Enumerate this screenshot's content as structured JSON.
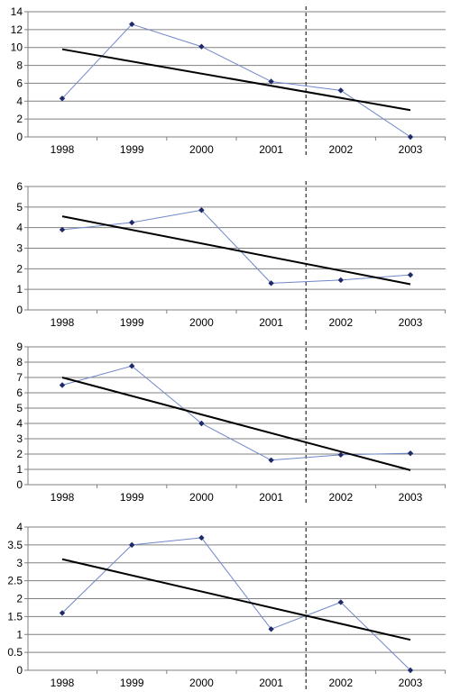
{
  "colors": {
    "grid": "#808080",
    "axis": "#808080",
    "series_line": "#6f86c9",
    "marker": "#1f2a6a",
    "trend": "#000000",
    "divider": "#000000"
  },
  "chart_data": [
    {
      "type": "line",
      "categories": [
        "1998",
        "1999",
        "2000",
        "2001",
        "2002",
        "2003"
      ],
      "ylim": [
        0,
        14
      ],
      "yticks": [
        0,
        2,
        4,
        6,
        8,
        10,
        12,
        14
      ],
      "ytick_labels": [
        "0",
        "2",
        "4",
        "6",
        "8",
        "10",
        "12",
        "14"
      ],
      "series": [
        {
          "values": [
            4.3,
            12.6,
            10.1,
            6.2,
            5.2,
            0
          ]
        }
      ],
      "trendline": {
        "start": 9.8,
        "end": 3.0
      },
      "divider_between": [
        "2001",
        "2002"
      ],
      "grid": true
    },
    {
      "type": "line",
      "categories": [
        "1998",
        "1999",
        "2000",
        "2001",
        "2002",
        "2003"
      ],
      "ylim": [
        0,
        6
      ],
      "yticks": [
        0,
        1,
        2,
        3,
        4,
        5,
        6
      ],
      "ytick_labels": [
        "0",
        "1",
        "2",
        "3",
        "4",
        "5",
        "6"
      ],
      "series": [
        {
          "values": [
            3.9,
            4.25,
            4.85,
            1.3,
            1.45,
            1.7
          ]
        }
      ],
      "trendline": {
        "start": 4.55,
        "end": 1.25
      },
      "divider_between": [
        "2001",
        "2002"
      ],
      "grid": true
    },
    {
      "type": "line",
      "categories": [
        "1998",
        "1999",
        "2000",
        "2001",
        "2002",
        "2003"
      ],
      "ylim": [
        0,
        9
      ],
      "yticks": [
        0,
        1,
        2,
        3,
        4,
        5,
        6,
        7,
        8,
        9
      ],
      "ytick_labels": [
        "0",
        "1",
        "2",
        "3",
        "4",
        "5",
        "6",
        "7",
        "8",
        "9"
      ],
      "series": [
        {
          "values": [
            6.5,
            7.75,
            4.0,
            1.6,
            1.95,
            2.05
          ]
        }
      ],
      "trendline": {
        "start": 7.0,
        "end": 0.95
      },
      "divider_between": [
        "2001",
        "2002"
      ],
      "grid": true
    },
    {
      "type": "line",
      "categories": [
        "1998",
        "1999",
        "2000",
        "2001",
        "2002",
        "2003"
      ],
      "ylim": [
        0,
        4
      ],
      "yticks": [
        0,
        0.5,
        1,
        1.5,
        2,
        2.5,
        3,
        3.5,
        4
      ],
      "ytick_labels": [
        "0",
        "0.5",
        "1",
        "1.5",
        "2",
        "2.5",
        "3",
        "3.5",
        "4"
      ],
      "series": [
        {
          "values": [
            1.6,
            3.5,
            3.7,
            1.15,
            1.9,
            0
          ]
        }
      ],
      "trendline": {
        "start": 3.1,
        "end": 0.85
      },
      "divider_between": [
        "2001",
        "2002"
      ],
      "grid": true
    }
  ]
}
